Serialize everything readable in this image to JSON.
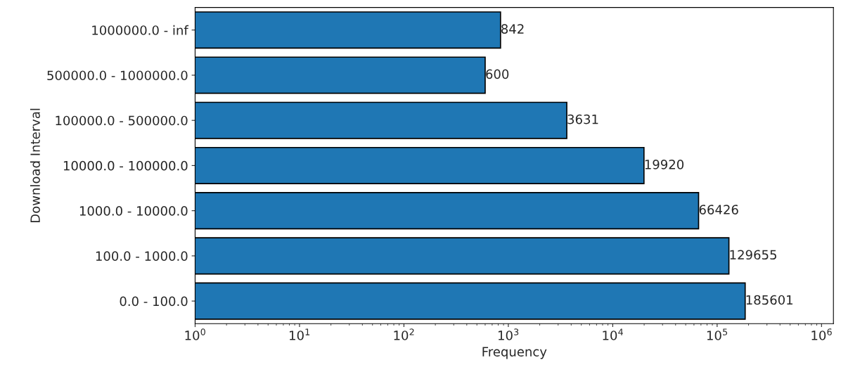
{
  "chart_data": {
    "type": "bar",
    "orientation": "horizontal",
    "log": "x",
    "xlabel": "Frequency",
    "ylabel": "Download Interval",
    "categories": [
      "1000000.0 - inf",
      "500000.0 - 1000000.0",
      "100000.0 - 500000.0",
      "10000.0 - 100000.0",
      "1000.0 - 10000.0",
      "100.0 - 1000.0",
      "0.0 - 100.0"
    ],
    "values": [
      842,
      600,
      3631,
      19920,
      66426,
      129655,
      185601
    ],
    "color": "#1f77b4",
    "data_labels": true,
    "grid": false,
    "xlim": [
      1,
      1300000
    ],
    "xticks": [
      {
        "value": 1,
        "label": "10$^{0}$"
      },
      {
        "value": 10,
        "label": "10$^{1}$"
      },
      {
        "value": 100,
        "label": "10$^{2}$"
      },
      {
        "value": 1000,
        "label": "10$^{3}$"
      },
      {
        "value": 10000,
        "label": "10$^{4}$"
      },
      {
        "value": 100000,
        "label": "10$^{5}$"
      },
      {
        "value": 1000000,
        "label": "10$^{6}$"
      }
    ]
  }
}
